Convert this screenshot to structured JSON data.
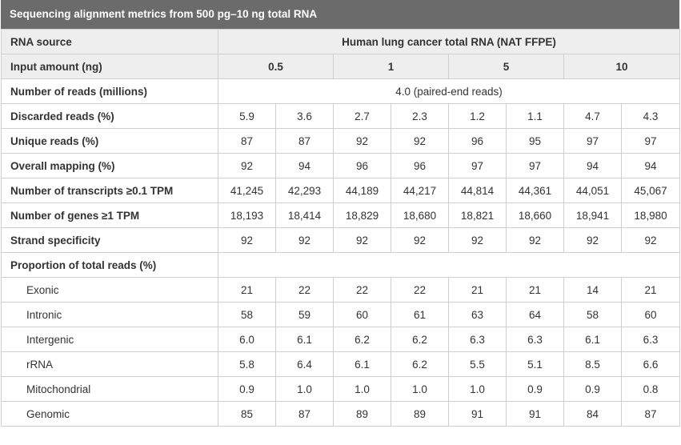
{
  "title": "Sequencing alignment metrics from 500 pg–10 ng total RNA",
  "header": {
    "rna_source_label": "RNA source",
    "rna_source_value": "Human lung cancer total RNA (NAT FFPE)",
    "input_label": "Input amount (ng)",
    "inputs": [
      "0.5",
      "1",
      "5",
      "10"
    ]
  },
  "reads": {
    "label": "Number of reads (millions)",
    "value": "4.0 (paired-end reads)"
  },
  "metrics": [
    {
      "label": "Discarded reads (%)",
      "values": [
        "5.9",
        "3.6",
        "2.7",
        "2.3",
        "1.2",
        "1.1",
        "4.7",
        "4.3"
      ]
    },
    {
      "label": "Unique reads (%)",
      "values": [
        "87",
        "87",
        "92",
        "92",
        "96",
        "95",
        "97",
        "97"
      ]
    },
    {
      "label": "Overall mapping (%)",
      "values": [
        "92",
        "94",
        "96",
        "96",
        "97",
        "97",
        "94",
        "94"
      ]
    },
    {
      "label": "Number of transcripts  ≥0.1 TPM",
      "values": [
        "41,245",
        "42,293",
        "44,189",
        "44,217",
        "44,814",
        "44,361",
        "44,051",
        "45,067"
      ]
    },
    {
      "label": "Number of genes  ≥1 TPM",
      "values": [
        "18,193",
        "18,414",
        "18,829",
        "18,680",
        "18,821",
        "18,660",
        "18,941",
        "18,980"
      ]
    },
    {
      "label": "Strand specificity",
      "values": [
        "92",
        "92",
        "92",
        "92",
        "92",
        "92",
        "92",
        "92"
      ]
    }
  ],
  "proportion_label": "Proportion of total reads (%)",
  "proportions": [
    {
      "label": "Exonic",
      "values": [
        "21",
        "22",
        "22",
        "22",
        "21",
        "21",
        "14",
        "21"
      ]
    },
    {
      "label": "Intronic",
      "values": [
        "58",
        "59",
        "60",
        "61",
        "63",
        "64",
        "58",
        "60"
      ]
    },
    {
      "label": "Intergenic",
      "values": [
        "6.0",
        "6.1",
        "6.2",
        "6.2",
        "6.3",
        "6.3",
        "6.1",
        "6.3"
      ]
    },
    {
      "label": "rRNA",
      "values": [
        "5.8",
        "6.4",
        "6.1",
        "6.2",
        "5.5",
        "5.1",
        "8.5",
        "6.6"
      ]
    },
    {
      "label": "Mitochondrial",
      "values": [
        "0.9",
        "1.0",
        "1.0",
        "1.0",
        "1.0",
        "0.9",
        "0.9",
        "0.8"
      ]
    },
    {
      "label": "Genomic",
      "values": [
        "85",
        "87",
        "89",
        "89",
        "91",
        "91",
        "84",
        "87"
      ]
    }
  ]
}
